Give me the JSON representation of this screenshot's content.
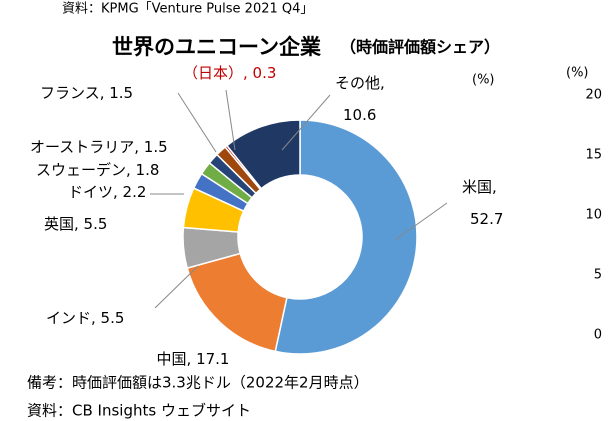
{
  "source_top": "資料：KPMG「Venture Pulse 2021 Q4」",
  "chart_data": [
    {
      "type": "donut",
      "title": "世界のユニコーン企業",
      "subtitle": "（時価評価額シェア）",
      "unit": "(%)",
      "values": [
        52.7,
        17.1,
        5.5,
        5.5,
        2.2,
        1.8,
        1.5,
        1.5,
        0.3,
        10.6
      ],
      "value_labels": [
        [
          "米国,",
          "52.7"
        ],
        [
          "中国, 17.1"
        ],
        [
          "インド, 5.5"
        ],
        [
          "英国, 5.5"
        ],
        [
          "ドイツ, 2.2"
        ],
        [
          "スウェーデン, 1.8"
        ],
        [
          "オーストラリア, 1.5"
        ],
        [
          "フランス, 1.5"
        ],
        [
          "（日本）, 0.3"
        ],
        [
          "その他,",
          "10.6"
        ]
      ],
      "colors": [
        "#5b9bd5",
        "#ed7d31",
        "#a5a5a5",
        "#ffc000",
        "#4472c4",
        "#70ad47",
        "#264478",
        "#9e480e",
        "#c00000",
        "#1f3864"
      ],
      "label_colors": [
        "#000000",
        "#000000",
        "#000000",
        "#000000",
        "#000000",
        "#000000",
        "#000000",
        "#000000",
        "#c00000",
        "#000000"
      ]
    },
    {
      "type": "bar",
      "unit": "(%)",
      "ylim": [
        0,
        20
      ],
      "yticks": [
        0,
        5,
        10,
        15,
        20
      ]
    }
  ],
  "notes": [
    "備考：時価評価額は3.3兆ドル（2022年2月時点）",
    "資料：CB Insights ウェブサイト"
  ]
}
